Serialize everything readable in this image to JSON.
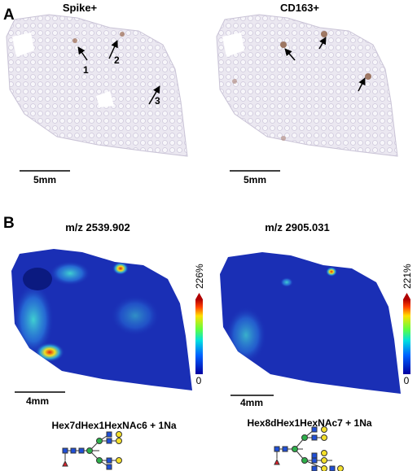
{
  "panel_a": {
    "label": "A",
    "images": [
      {
        "title": "Spike+",
        "arrows": [
          "1",
          "2",
          "3"
        ],
        "scale": "5mm"
      },
      {
        "title": "CD163+",
        "scale": "5mm"
      }
    ]
  },
  "panel_b": {
    "label": "B",
    "images": [
      {
        "title": "m/z 2539.902",
        "colorbar_max": "226%",
        "colorbar_min": "0",
        "scale": "4mm",
        "glycan": "Hex7dHex1HexNAc6 + 1Na"
      },
      {
        "title": "m/z 2905.031",
        "colorbar_max": "221%",
        "colorbar_min": "0",
        "scale": "4mm",
        "glycan": "Hex8dHex1HexNAc7 + 1Na"
      }
    ]
  }
}
